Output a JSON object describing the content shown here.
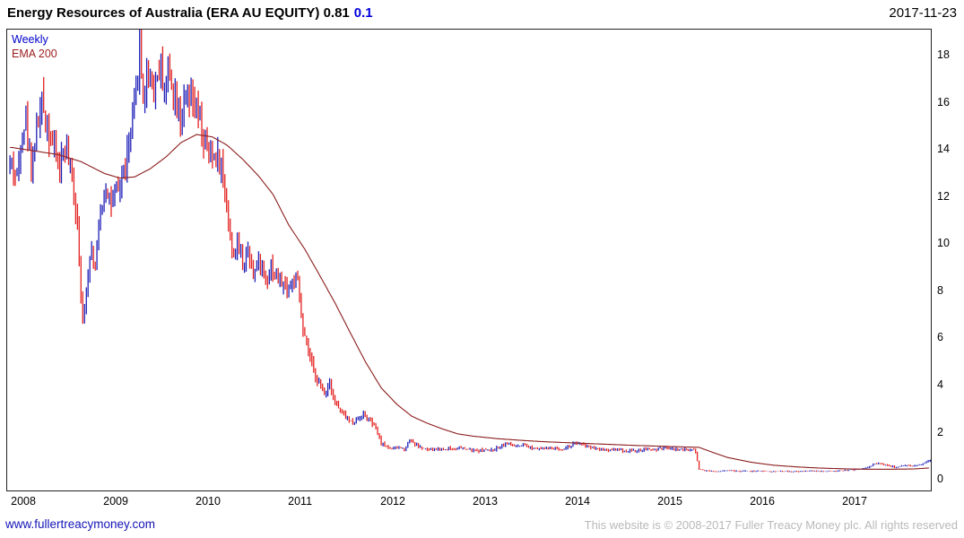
{
  "header": {
    "title": "Energy Resources of Australia (ERA AU EQUITY) 0.81",
    "change": "0.1",
    "date": "2017-11-23"
  },
  "legend": {
    "timeframe": "Weekly",
    "overlay": "EMA 200"
  },
  "footer": {
    "site": "www.fullertreacymoney.com",
    "copyright": "This website is © 2008-2017 Fuller Treacy Money plc. All rights reserved"
  },
  "colors": {
    "up": "#2021b8",
    "down": "#e32322",
    "ema": "#8b1c1c",
    "marker": "#2021b8"
  },
  "chart_data": {
    "type": "bar",
    "subtype": "weekly-ohlc-bars-with-ema",
    "title": "Energy Resources of Australia (ERA AU EQUITY)",
    "timeframe": "Weekly",
    "overlay": "EMA 200",
    "last_price": 0.81,
    "change": 0.1,
    "date": "2017-11-23",
    "xlim": [
      2007.95,
      2017.95
    ],
    "ylim": [
      -0.45,
      19.1
    ],
    "x_ticks": [
      2008,
      2009,
      2010,
      2011,
      2012,
      2013,
      2014,
      2015,
      2016,
      2017
    ],
    "y_ticks": [
      0,
      2,
      4,
      6,
      8,
      10,
      12,
      14,
      16,
      18
    ],
    "grid": false,
    "legend_position": "top-left",
    "price_weekly_anchors": [
      [
        2008.0,
        13.4
      ],
      [
        2008.06,
        12.8
      ],
      [
        2008.1,
        14.6
      ],
      [
        2008.15,
        15.3
      ],
      [
        2008.21,
        13.4
      ],
      [
        2008.27,
        14.9
      ],
      [
        2008.33,
        16.0
      ],
      [
        2008.4,
        14.8
      ],
      [
        2008.46,
        14.0
      ],
      [
        2008.52,
        13.3
      ],
      [
        2008.58,
        14.1
      ],
      [
        2008.65,
        12.8
      ],
      [
        2008.71,
        11.0
      ],
      [
        2008.77,
        6.4
      ],
      [
        2008.81,
        8.3
      ],
      [
        2008.85,
        9.9
      ],
      [
        2008.9,
        9.0
      ],
      [
        2008.96,
        11.3
      ],
      [
        2009.02,
        12.5
      ],
      [
        2009.08,
        11.7
      ],
      [
        2009.15,
        12.2
      ],
      [
        2009.21,
        13.1
      ],
      [
        2009.27,
        14.1
      ],
      [
        2009.33,
        15.8
      ],
      [
        2009.38,
        18.5
      ],
      [
        2009.42,
        16.2
      ],
      [
        2009.48,
        17.4
      ],
      [
        2009.54,
        16.6
      ],
      [
        2009.6,
        17.5
      ],
      [
        2009.65,
        16.8
      ],
      [
        2009.71,
        17.3
      ],
      [
        2009.77,
        16.4
      ],
      [
        2009.83,
        15.5
      ],
      [
        2009.9,
        16.1
      ],
      [
        2009.96,
        15.9
      ],
      [
        2010.02,
        15.3
      ],
      [
        2010.08,
        14.3
      ],
      [
        2010.15,
        13.6
      ],
      [
        2010.21,
        13.9
      ],
      [
        2010.27,
        13.3
      ],
      [
        2010.33,
        11.6
      ],
      [
        2010.38,
        9.6
      ],
      [
        2010.44,
        9.9
      ],
      [
        2010.5,
        9.3
      ],
      [
        2010.56,
        9.7
      ],
      [
        2010.63,
        8.8
      ],
      [
        2010.69,
        9.3
      ],
      [
        2010.75,
        8.6
      ],
      [
        2010.81,
        9.1
      ],
      [
        2010.88,
        8.5
      ],
      [
        2010.94,
        8.3
      ],
      [
        2011.0,
        8.1
      ],
      [
        2011.06,
        8.6
      ],
      [
        2011.1,
        8.2
      ],
      [
        2011.15,
        6.3
      ],
      [
        2011.21,
        5.4
      ],
      [
        2011.27,
        4.6
      ],
      [
        2011.33,
        4.1
      ],
      [
        2011.38,
        3.6
      ],
      [
        2011.44,
        4.2
      ],
      [
        2011.5,
        3.3
      ],
      [
        2011.56,
        2.9
      ],
      [
        2011.63,
        2.6
      ],
      [
        2011.69,
        2.4
      ],
      [
        2011.75,
        2.6
      ],
      [
        2011.81,
        2.8
      ],
      [
        2011.88,
        2.5
      ],
      [
        2011.94,
        2.2
      ],
      [
        2012.0,
        1.55
      ],
      [
        2012.06,
        1.4
      ],
      [
        2012.13,
        1.32
      ],
      [
        2012.19,
        1.38
      ],
      [
        2012.25,
        1.3
      ],
      [
        2012.31,
        1.75
      ],
      [
        2012.35,
        1.55
      ],
      [
        2012.42,
        1.38
      ],
      [
        2012.48,
        1.3
      ],
      [
        2012.54,
        1.26
      ],
      [
        2012.6,
        1.32
      ],
      [
        2012.67,
        1.28
      ],
      [
        2012.73,
        1.34
      ],
      [
        2012.79,
        1.3
      ],
      [
        2012.85,
        1.36
      ],
      [
        2012.92,
        1.3
      ],
      [
        2012.98,
        1.26
      ],
      [
        2013.04,
        1.22
      ],
      [
        2013.1,
        1.28
      ],
      [
        2013.17,
        1.24
      ],
      [
        2013.23,
        1.3
      ],
      [
        2013.29,
        1.42
      ],
      [
        2013.35,
        1.56
      ],
      [
        2013.42,
        1.46
      ],
      [
        2013.48,
        1.4
      ],
      [
        2013.54,
        1.44
      ],
      [
        2013.6,
        1.38
      ],
      [
        2013.67,
        1.34
      ],
      [
        2013.73,
        1.38
      ],
      [
        2013.79,
        1.32
      ],
      [
        2013.85,
        1.36
      ],
      [
        2013.92,
        1.3
      ],
      [
        2013.98,
        1.34
      ],
      [
        2014.04,
        1.42
      ],
      [
        2014.1,
        1.6
      ],
      [
        2014.15,
        1.52
      ],
      [
        2014.21,
        1.44
      ],
      [
        2014.27,
        1.38
      ],
      [
        2014.33,
        1.34
      ],
      [
        2014.4,
        1.3
      ],
      [
        2014.46,
        1.26
      ],
      [
        2014.52,
        1.3
      ],
      [
        2014.58,
        1.26
      ],
      [
        2014.65,
        1.22
      ],
      [
        2014.71,
        1.26
      ],
      [
        2014.77,
        1.22
      ],
      [
        2014.83,
        1.26
      ],
      [
        2014.9,
        1.3
      ],
      [
        2014.96,
        1.28
      ],
      [
        2015.02,
        1.32
      ],
      [
        2015.08,
        1.36
      ],
      [
        2015.15,
        1.3
      ],
      [
        2015.21,
        1.32
      ],
      [
        2015.27,
        1.28
      ],
      [
        2015.33,
        1.3
      ],
      [
        2015.4,
        1.28
      ],
      [
        2015.44,
        0.44
      ],
      [
        2015.5,
        0.4
      ],
      [
        2015.56,
        0.37
      ],
      [
        2015.63,
        0.35
      ],
      [
        2015.69,
        0.38
      ],
      [
        2015.75,
        0.41
      ],
      [
        2015.81,
        0.38
      ],
      [
        2015.88,
        0.36
      ],
      [
        2015.94,
        0.38
      ],
      [
        2016.0,
        0.36
      ],
      [
        2016.1,
        0.38
      ],
      [
        2016.21,
        0.35
      ],
      [
        2016.33,
        0.37
      ],
      [
        2016.44,
        0.35
      ],
      [
        2016.56,
        0.36
      ],
      [
        2016.67,
        0.38
      ],
      [
        2016.79,
        0.36
      ],
      [
        2016.9,
        0.37
      ],
      [
        2017.0,
        0.4
      ],
      [
        2017.08,
        0.42
      ],
      [
        2017.17,
        0.45
      ],
      [
        2017.25,
        0.5
      ],
      [
        2017.31,
        0.62
      ],
      [
        2017.38,
        0.72
      ],
      [
        2017.44,
        0.66
      ],
      [
        2017.5,
        0.58
      ],
      [
        2017.56,
        0.55
      ],
      [
        2017.63,
        0.57
      ],
      [
        2017.69,
        0.6
      ],
      [
        2017.75,
        0.56
      ],
      [
        2017.81,
        0.62
      ],
      [
        2017.88,
        0.72
      ],
      [
        2017.92,
        0.81
      ]
    ],
    "ema200_anchors": [
      [
        2008.0,
        14.1
      ],
      [
        2008.25,
        13.95
      ],
      [
        2008.5,
        13.8
      ],
      [
        2008.75,
        13.5
      ],
      [
        2009.0,
        13.0
      ],
      [
        2009.17,
        12.8
      ],
      [
        2009.33,
        12.85
      ],
      [
        2009.5,
        13.2
      ],
      [
        2009.67,
        13.7
      ],
      [
        2009.83,
        14.3
      ],
      [
        2010.0,
        14.65
      ],
      [
        2010.17,
        14.55
      ],
      [
        2010.33,
        14.2
      ],
      [
        2010.5,
        13.6
      ],
      [
        2010.67,
        12.9
      ],
      [
        2010.83,
        12.1
      ],
      [
        2011.0,
        10.8
      ],
      [
        2011.17,
        9.8
      ],
      [
        2011.33,
        8.7
      ],
      [
        2011.5,
        7.5
      ],
      [
        2011.67,
        6.2
      ],
      [
        2011.83,
        5.0
      ],
      [
        2012.0,
        3.9
      ],
      [
        2012.17,
        3.2
      ],
      [
        2012.33,
        2.7
      ],
      [
        2012.5,
        2.4
      ],
      [
        2012.67,
        2.15
      ],
      [
        2012.83,
        1.95
      ],
      [
        2013.0,
        1.85
      ],
      [
        2013.25,
        1.75
      ],
      [
        2013.5,
        1.68
      ],
      [
        2013.75,
        1.62
      ],
      [
        2014.0,
        1.58
      ],
      [
        2014.25,
        1.54
      ],
      [
        2014.5,
        1.5
      ],
      [
        2014.75,
        1.46
      ],
      [
        2015.0,
        1.43
      ],
      [
        2015.25,
        1.4
      ],
      [
        2015.44,
        1.38
      ],
      [
        2015.6,
        1.15
      ],
      [
        2015.75,
        0.95
      ],
      [
        2016.0,
        0.75
      ],
      [
        2016.25,
        0.62
      ],
      [
        2016.5,
        0.55
      ],
      [
        2016.75,
        0.5
      ],
      [
        2017.0,
        0.47
      ],
      [
        2017.25,
        0.45
      ],
      [
        2017.5,
        0.45
      ],
      [
        2017.75,
        0.46
      ],
      [
        2017.92,
        0.5
      ]
    ]
  }
}
